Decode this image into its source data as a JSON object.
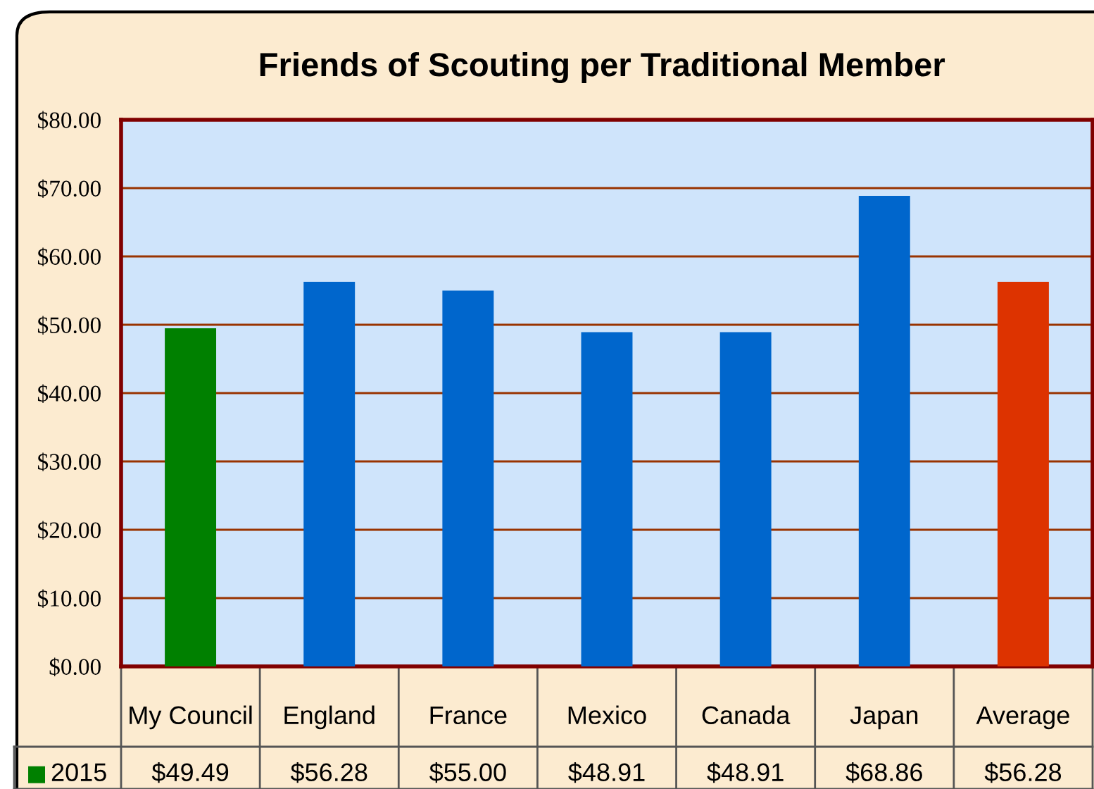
{
  "chart_data": {
    "type": "bar",
    "title": "Friends of Scouting per Traditional Member",
    "categories": [
      "My Council",
      "England",
      "France",
      "Mexico",
      "Canada",
      "Japan",
      "Average"
    ],
    "series": [
      {
        "name": "2015",
        "color": "#008000",
        "colors": [
          "#008000",
          "#0066cc",
          "#0066cc",
          "#0066cc",
          "#0066cc",
          "#0066cc",
          "#dd3300"
        ],
        "values": [
          49.49,
          56.28,
          55.0,
          48.91,
          48.91,
          68.86,
          56.28
        ],
        "value_labels": [
          "$49.49",
          "$56.28",
          "$55.00",
          "$48.91",
          "$48.91",
          "$68.86",
          "$56.28"
        ]
      }
    ],
    "ylim": [
      0,
      80
    ],
    "yticks": [
      {
        "value": 0,
        "label": "$0.00"
      },
      {
        "value": 10,
        "label": "$10.00"
      },
      {
        "value": 20,
        "label": "$20.00"
      },
      {
        "value": 30,
        "label": "$30.00"
      },
      {
        "value": 40,
        "label": "$40.00"
      },
      {
        "value": 50,
        "label": "$50.00"
      },
      {
        "value": 60,
        "label": "$60.00"
      },
      {
        "value": 70,
        "label": "$70.00"
      },
      {
        "value": 80,
        "label": "$80.00"
      }
    ],
    "grid": "y",
    "legend": "bottom left"
  }
}
